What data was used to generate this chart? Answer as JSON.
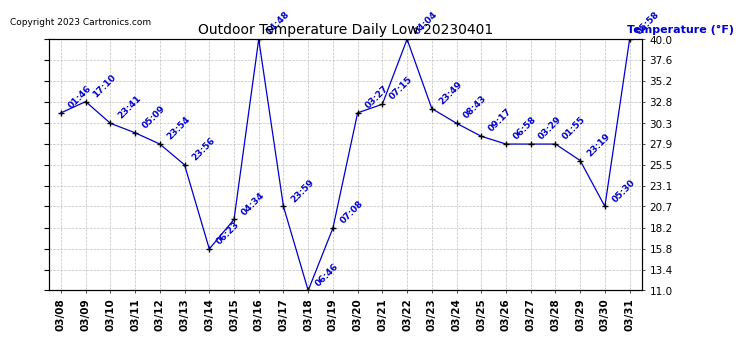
{
  "title": "Outdoor Temperature Daily Low 20230401",
  "copyright": "Copyright 2023 Cartronics.com",
  "ylabel": "Temperature (°F)",
  "ylim": [
    11.0,
    40.0
  ],
  "yticks": [
    11.0,
    13.4,
    15.8,
    18.2,
    20.7,
    23.1,
    25.5,
    27.9,
    30.3,
    32.8,
    35.2,
    37.6,
    40.0
  ],
  "dates": [
    "03/08",
    "03/09",
    "03/10",
    "03/11",
    "03/12",
    "03/13",
    "03/14",
    "03/15",
    "03/16",
    "03/17",
    "03/18",
    "03/19",
    "03/20",
    "03/21",
    "03/22",
    "03/23",
    "03/24",
    "03/25",
    "03/26",
    "03/27",
    "03/28",
    "03/29",
    "03/30",
    "03/31"
  ],
  "values": [
    31.5,
    32.8,
    30.3,
    29.2,
    27.9,
    25.5,
    15.8,
    19.2,
    40.0,
    20.7,
    11.0,
    18.2,
    31.5,
    32.5,
    40.0,
    32.0,
    30.3,
    28.8,
    27.9,
    27.9,
    27.9,
    26.0,
    20.7,
    40.0
  ],
  "time_labels": [
    "01:46",
    "17:10",
    "23:41",
    "05:09",
    "23:54",
    "23:56",
    "06:23",
    "04:34",
    "14:48",
    "23:59",
    "06:46",
    "07:08",
    "03:27",
    "07:15",
    "04:04",
    "23:49",
    "08:43",
    "09:17",
    "06:58",
    "03:29",
    "01:55",
    "23:19",
    "05:30",
    "05:58"
  ],
  "line_color": "#0000cd",
  "marker_color": "#000000",
  "bg_color": "#ffffff",
  "grid_color": "#c0c0c0",
  "title_color": "#000000",
  "annot_color": "#0000cd",
  "ylabel_color": "#0000cd",
  "copyright_color": "#000000",
  "title_fontsize": 10,
  "tick_fontsize": 7.5,
  "annot_fontsize": 6.5,
  "copyright_fontsize": 6.5,
  "ylabel_fontsize": 8
}
